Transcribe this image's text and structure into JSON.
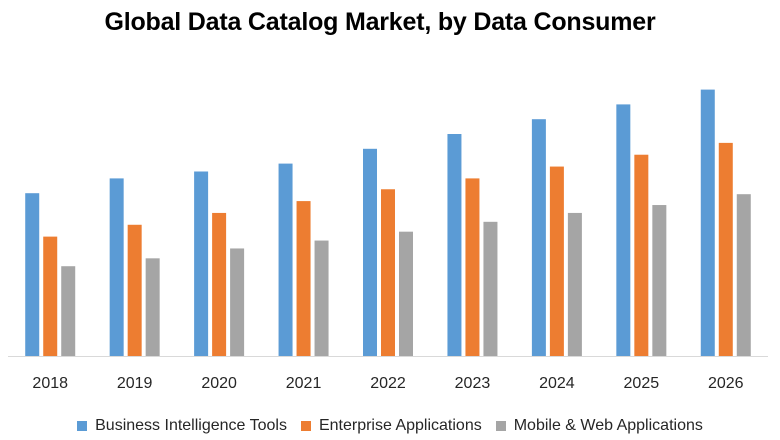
{
  "chart_data": {
    "type": "bar",
    "title": "Global Data Catalog Market, by Data Consumer",
    "xlabel": "",
    "ylabel": "",
    "categories": [
      "2018",
      "2019",
      "2020",
      "2021",
      "2022",
      "2023",
      "2024",
      "2025",
      "2026"
    ],
    "series": [
      {
        "name": "Business Intelligence Tools",
        "color": "#5B9BD5",
        "values": [
          165,
          180,
          187,
          195,
          210,
          225,
          240,
          255,
          270
        ]
      },
      {
        "name": "Enterprise Applications",
        "color": "#ED7D31",
        "values": [
          121,
          133,
          145,
          157,
          169,
          180,
          192,
          204,
          216
        ]
      },
      {
        "name": "Mobile & Web Applications",
        "color": "#A5A5A5",
        "values": [
          91,
          99,
          109,
          117,
          126,
          136,
          145,
          153,
          164
        ]
      }
    ],
    "ylim": [
      0,
      300
    ],
    "y_axis_visible": false,
    "grid": false,
    "legend_position": "bottom"
  }
}
